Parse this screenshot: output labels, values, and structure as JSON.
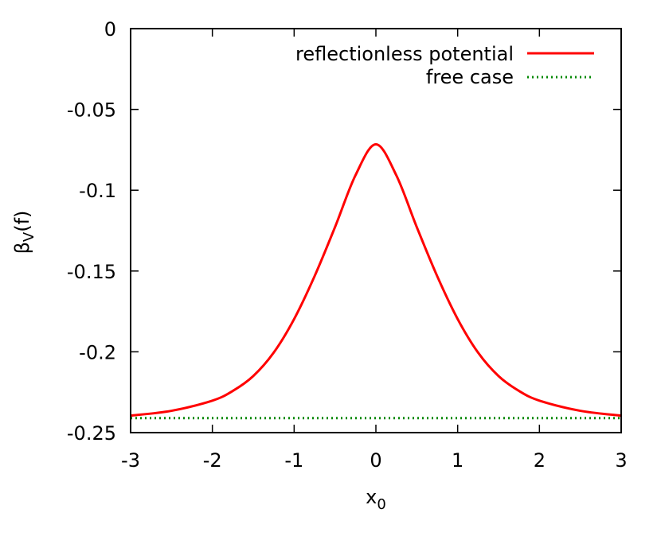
{
  "chart_data": {
    "type": "line",
    "title": "",
    "xlabel": "x",
    "xlabel_sub": "0",
    "ylabel": "β",
    "ylabel_sub": "V",
    "ylabel_suffix": "(f)",
    "xlim": [
      -3,
      3
    ],
    "ylim": [
      -0.25,
      0
    ],
    "xticks": [
      -3,
      -2,
      -1,
      0,
      1,
      2,
      3
    ],
    "xtick_labels": [
      "-3",
      "-2",
      "-1",
      "0",
      "1",
      "2",
      "3"
    ],
    "yticks": [
      -0.25,
      -0.2,
      -0.15,
      -0.1,
      -0.05,
      0
    ],
    "ytick_labels": [
      "-0.25",
      "-0.2",
      "-0.15",
      "-0.1",
      "-0.05",
      "0"
    ],
    "grid": false,
    "legend_position": "top-right",
    "series": [
      {
        "name": "reflectionless potential",
        "color": "#ff0000",
        "style": "solid",
        "x": [
          -3,
          -2.5,
          -2,
          -1.75,
          -1.5,
          -1.25,
          -1,
          -0.75,
          -0.5,
          -0.25,
          0,
          0.25,
          0.5,
          0.75,
          1,
          1.25,
          1.5,
          1.75,
          2,
          2.5,
          3
        ],
        "y": [
          -0.2395,
          -0.2365,
          -0.2302,
          -0.2242,
          -0.215,
          -0.2005,
          -0.1797,
          -0.1532,
          -0.1228,
          -0.0908,
          -0.0716,
          -0.0908,
          -0.1228,
          -0.1532,
          -0.1797,
          -0.2005,
          -0.215,
          -0.2242,
          -0.2302,
          -0.2365,
          -0.2395
        ]
      },
      {
        "name": "free case",
        "color": "#008800",
        "style": "dotted",
        "x": [
          -3,
          3
        ],
        "y": [
          -0.241,
          -0.241
        ]
      }
    ]
  }
}
